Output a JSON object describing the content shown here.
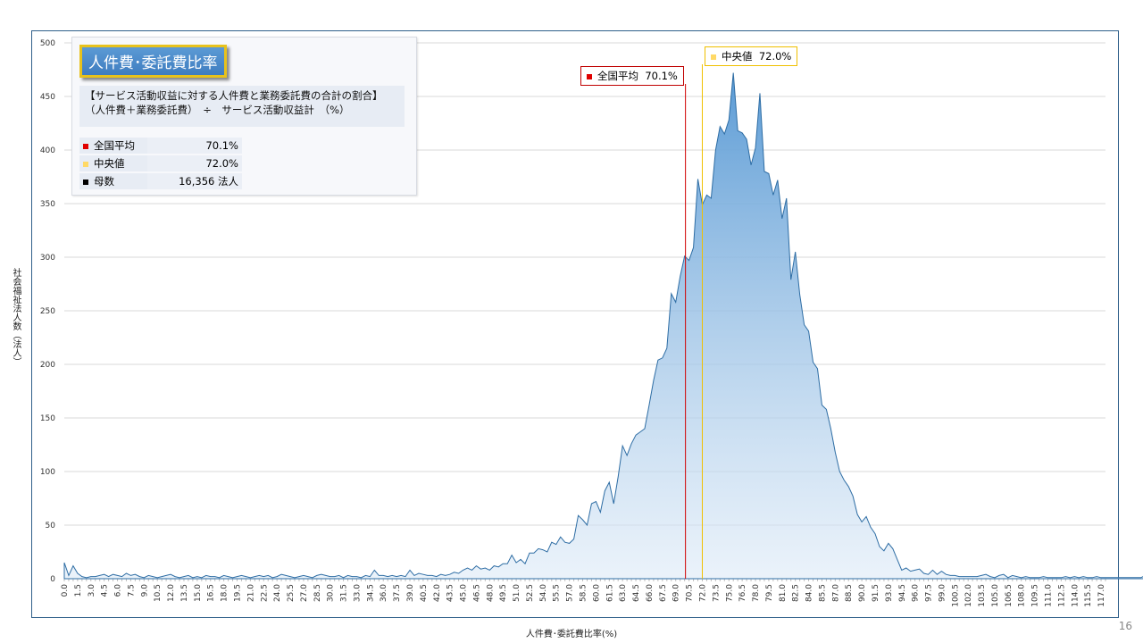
{
  "chart_data": {
    "type": "area",
    "xlabel": "人件費･委託費比率(%)",
    "ylabel": "社会福祉法人数（法人）",
    "xlim": [
      0,
      117.5
    ],
    "ylim": [
      0,
      500
    ],
    "yticks": [
      "0",
      "50",
      "100",
      "150",
      "200",
      "250",
      "300",
      "350",
      "400",
      "450",
      "500"
    ],
    "xtick_step": 1.5,
    "x_step": 0.5,
    "values": [
      15,
      3,
      12,
      5,
      2,
      1,
      2,
      2,
      3,
      4,
      2,
      4,
      3,
      2,
      5,
      3,
      4,
      2,
      1,
      3,
      2,
      1,
      2,
      3,
      4,
      2,
      1,
      2,
      3,
      1,
      2,
      1,
      3,
      2,
      2,
      1,
      3,
      2,
      1,
      2,
      3,
      2,
      1,
      2,
      3,
      2,
      3,
      1,
      2,
      4,
      3,
      2,
      1,
      2,
      3,
      2,
      1,
      3,
      4,
      3,
      2,
      2,
      3,
      1,
      3,
      2,
      2,
      1,
      3,
      2,
      8,
      3,
      3,
      2,
      3,
      2,
      3,
      2,
      8,
      3,
      5,
      4,
      3,
      3,
      2,
      4,
      3,
      4,
      6,
      5,
      8,
      10,
      8,
      12,
      9,
      10,
      8,
      12,
      11,
      14,
      14,
      22,
      15,
      18,
      14,
      24,
      24,
      28,
      27,
      25,
      34,
      32,
      39,
      34,
      33,
      37,
      59,
      55,
      50,
      70,
      72,
      62,
      82,
      90,
      70,
      95,
      124,
      115,
      126,
      134,
      137,
      140,
      162,
      185,
      204,
      206,
      215,
      266,
      258,
      282,
      301,
      297,
      309,
      373,
      349,
      358,
      355,
      400,
      422,
      415,
      428,
      472,
      418,
      416,
      410,
      386,
      402,
      453,
      380,
      378,
      358,
      372,
      336,
      355,
      279,
      305,
      265,
      237,
      231,
      202,
      196,
      162,
      158,
      140,
      118,
      100,
      92,
      86,
      77,
      60,
      53,
      58,
      48,
      42,
      30,
      26,
      33,
      28,
      18,
      8,
      10,
      7,
      8,
      9,
      5,
      4,
      8,
      4,
      7,
      4,
      3,
      3,
      2,
      2,
      2,
      2,
      2,
      3,
      4,
      2,
      1,
      3,
      4,
      1,
      3,
      2,
      1,
      2,
      1,
      1,
      1,
      2,
      1,
      1,
      1,
      1,
      2,
      1,
      2,
      1,
      2,
      1,
      1,
      2,
      1,
      1,
      1,
      1,
      1,
      1,
      1,
      1,
      1,
      1,
      3
    ],
    "mean": 70.1,
    "median": 72.0
  },
  "info": {
    "title": "人件費･委託費比率",
    "desc_line1": "【サービス活動収益に対する人件費と業務委託費の合計の割合】",
    "desc_line2": "（人件費＋業務委託費）　÷　サービス活動収益計　（%）",
    "stats": [
      {
        "label": "全国平均",
        "value": "70.1%",
        "color": "#e00000"
      },
      {
        "label": "中央値",
        "value": "72.0%",
        "color": "#ffd966"
      },
      {
        "label": "母数",
        "value": "16,356  法人",
        "color": "#000000"
      }
    ]
  },
  "callouts": {
    "mean_label": "全国平均",
    "mean_value": "70.1%",
    "median_label": "中央値",
    "median_value": "72.0%"
  },
  "colors": {
    "mean_line": "#d00000",
    "median_line": "#f0c000",
    "area_top": "#5b9bd5",
    "stroke": "#2e6da4"
  },
  "page_number": "16"
}
